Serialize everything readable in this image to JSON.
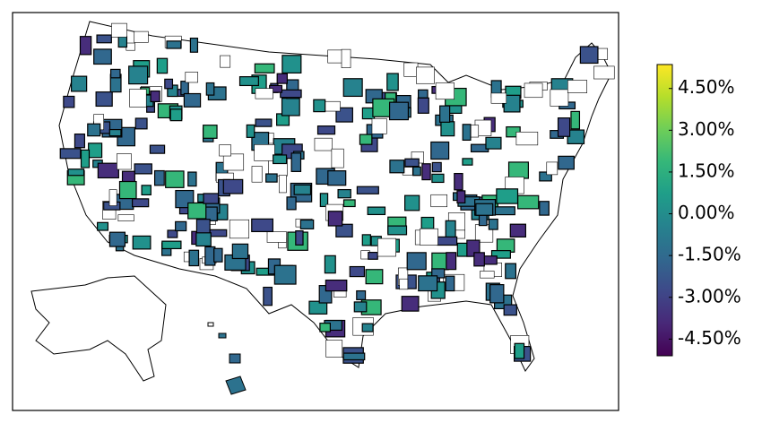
{
  "chart_data": {
    "type": "choropleth",
    "colormap": "viridis",
    "reverse_colormap": true,
    "clim": [
      -5.1,
      5.36
    ],
    "ticks": [
      {
        "value": 4.5,
        "label": "4.50%"
      },
      {
        "value": 3,
        "label": "3.00%"
      },
      {
        "value": 1.5,
        "label": "1.50%"
      },
      {
        "value": 0,
        "label": "0.00%"
      },
      {
        "value": -1.5,
        "label": "-1.50%"
      },
      {
        "value": -3,
        "label": "-3.00%"
      },
      {
        "value": -4.5,
        "label": "-4.50%"
      }
    ]
  }
}
